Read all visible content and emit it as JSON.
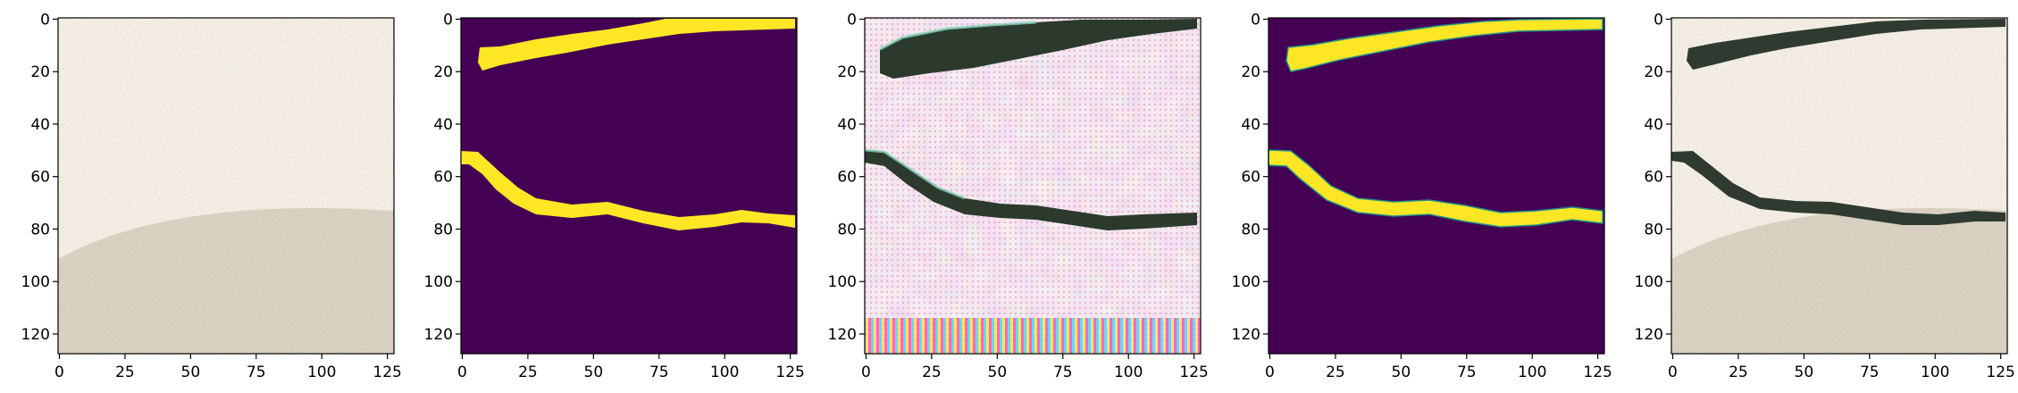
{
  "figure": {
    "panel_count": 5,
    "axes": {
      "x_ticks": [
        "0",
        "25",
        "50",
        "75",
        "100",
        "125"
      ],
      "y_ticks": [
        "0",
        "20",
        "40",
        "60",
        "80",
        "100",
        "120"
      ],
      "xlim": [
        -0.5,
        127.5
      ],
      "ylim_inverted": [
        127.5,
        -0.5
      ]
    },
    "panels": [
      {
        "kind": "photo",
        "description": "sand texture without crack"
      },
      {
        "kind": "mask",
        "description": "binary crack mask"
      },
      {
        "kind": "generated",
        "description": "generated crack image"
      },
      {
        "kind": "mask",
        "description": "smoothed crack mask"
      },
      {
        "kind": "composite",
        "description": "sand texture with crack"
      }
    ],
    "colors": {
      "mask_background": "#440154",
      "mask_foreground": "#fde725",
      "mask_edge": "#21918c",
      "sand": "#b8ac98",
      "crack_dark": "#2b3a2c",
      "generated_bg": "#f1d9e6"
    }
  }
}
